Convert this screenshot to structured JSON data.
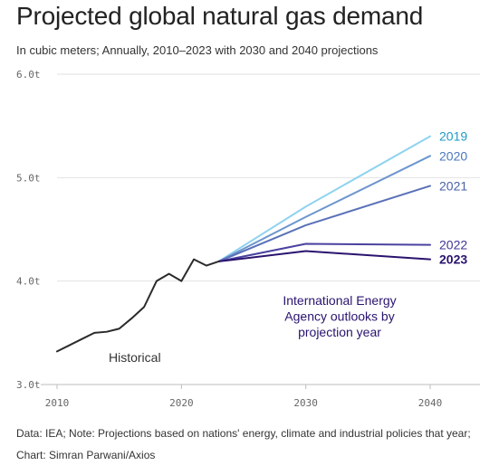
{
  "header": {
    "title": "Projected global natural gas demand",
    "subtitle": "In cubic meters; Annually, 2010–2023 with 2030 and 2040 projections"
  },
  "footer": {
    "note": "Data: IEA; Note: Projections based on nations' energy, climate and industrial policies that year;",
    "credit": "Chart: Simran Parwani/Axios"
  },
  "chart_data": {
    "type": "line",
    "xlim": [
      2010,
      2044
    ],
    "ylim": [
      3.0,
      6.0
    ],
    "x_ticks": [
      2010,
      2020,
      2030,
      2040
    ],
    "y_ticks": [
      {
        "value": 3.0,
        "label": "3.0t"
      },
      {
        "value": 4.0,
        "label": "4.0t"
      },
      {
        "value": 5.0,
        "label": "5.0t"
      },
      {
        "value": 6.0,
        "label": "6.0t"
      }
    ],
    "grid": "horizontal",
    "historical": {
      "label": "Historical",
      "color": "#2b2b2b",
      "x": [
        2010,
        2011,
        2012,
        2013,
        2014,
        2015,
        2016,
        2017,
        2018,
        2019,
        2020,
        2021,
        2022,
        2023
      ],
      "y": [
        3.32,
        3.38,
        3.44,
        3.5,
        3.51,
        3.54,
        3.64,
        3.75,
        4.0,
        4.07,
        4.0,
        4.21,
        4.15,
        4.19
      ]
    },
    "annotation": "International Energy\nAgency outlooks by\nprojection year",
    "series": [
      {
        "name": "2019",
        "color": "#8fd3ef",
        "label_color": "#1e9bc7",
        "bold": false,
        "x": [
          2023,
          2030,
          2040
        ],
        "y": [
          4.19,
          4.72,
          5.4
        ]
      },
      {
        "name": "2020",
        "color": "#6d96cf",
        "label_color": "#4b79bf",
        "bold": false,
        "x": [
          2023,
          2030,
          2040
        ],
        "y": [
          4.19,
          4.62,
          5.21
        ]
      },
      {
        "name": "2021",
        "color": "#5a71b8",
        "label_color": "#4a62a8",
        "bold": false,
        "x": [
          2023,
          2030,
          2040
        ],
        "y": [
          4.19,
          4.54,
          4.92
        ]
      },
      {
        "name": "2022",
        "color": "#4a42a0",
        "label_color": "#3f3796",
        "bold": false,
        "x": [
          2023,
          2030,
          2040
        ],
        "y": [
          4.19,
          4.36,
          4.35
        ]
      },
      {
        "name": "2023",
        "color": "#2a136f",
        "label_color": "#2a136f",
        "bold": true,
        "x": [
          2023,
          2030,
          2040
        ],
        "y": [
          4.19,
          4.29,
          4.21
        ]
      }
    ]
  }
}
